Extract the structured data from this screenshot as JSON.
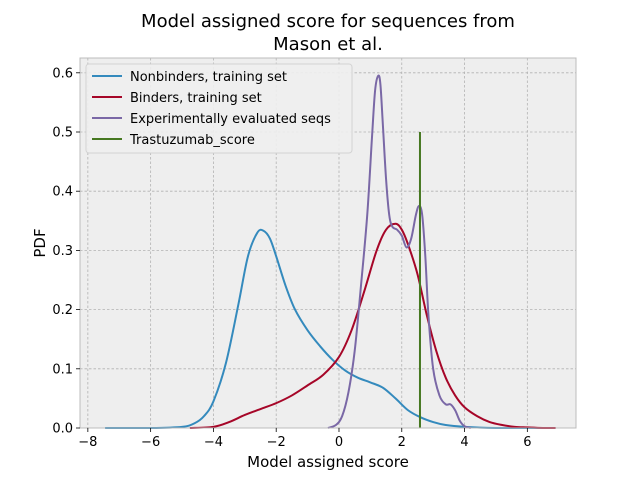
{
  "chart_data": {
    "type": "line",
    "title": [
      "Model assigned score for sequences from",
      "Mason et al."
    ],
    "xlabel": "Model assigned score",
    "ylabel": "PDF",
    "xlim": [
      -8.25,
      7.55
    ],
    "ylim": [
      0,
      0.625
    ],
    "xticks": [
      -8,
      -6,
      -4,
      -2,
      0,
      2,
      4,
      6
    ],
    "xtick_labels": [
      "−8",
      "−6",
      "−4",
      "−2",
      "0",
      "2",
      "4",
      "6"
    ],
    "yticks": [
      0,
      0.1,
      0.2,
      0.3,
      0.4,
      0.5,
      0.6
    ],
    "ytick_labels": [
      "0.0",
      "0.1",
      "0.2",
      "0.3",
      "0.4",
      "0.5",
      "0.6"
    ],
    "grid": true,
    "legend_position": "top-left",
    "series": [
      {
        "name": "Nonbinders, training set",
        "color": "#348ABD",
        "x": [
          -7.45,
          -6.0,
          -5.0,
          -4.6,
          -4.3,
          -4.0,
          -3.6,
          -3.2,
          -2.9,
          -2.6,
          -2.4,
          -2.2,
          -2.0,
          -1.7,
          -1.4,
          -1.0,
          -0.6,
          -0.2,
          0.2,
          0.6,
          1.0,
          1.4,
          1.8,
          2.2,
          2.6,
          3.0,
          3.4,
          4.0,
          5.0,
          6.0,
          6.75
        ],
        "y": [
          0.0,
          0.0,
          0.002,
          0.008,
          0.02,
          0.045,
          0.11,
          0.21,
          0.29,
          0.33,
          0.333,
          0.32,
          0.29,
          0.24,
          0.2,
          0.165,
          0.138,
          0.115,
          0.097,
          0.085,
          0.077,
          0.068,
          0.05,
          0.03,
          0.018,
          0.01,
          0.005,
          0.002,
          0.0,
          0.0,
          0.0
        ]
      },
      {
        "name": "Binders, training set",
        "color": "#A60628",
        "x": [
          -4.75,
          -4.0,
          -3.5,
          -3.0,
          -2.5,
          -2.0,
          -1.5,
          -1.0,
          -0.5,
          0.0,
          0.4,
          0.8,
          1.2,
          1.5,
          1.8,
          2.0,
          2.2,
          2.5,
          2.8,
          3.1,
          3.4,
          3.7,
          4.0,
          4.4,
          4.8,
          5.2,
          5.6,
          6.0,
          6.5,
          6.9
        ],
        "y": [
          0.0,
          0.002,
          0.01,
          0.022,
          0.032,
          0.042,
          0.055,
          0.072,
          0.09,
          0.12,
          0.165,
          0.23,
          0.3,
          0.335,
          0.345,
          0.335,
          0.31,
          0.26,
          0.19,
          0.13,
          0.085,
          0.055,
          0.035,
          0.02,
          0.01,
          0.005,
          0.002,
          0.001,
          0.0,
          0.0
        ]
      },
      {
        "name": "Experimentally evaluated seqs",
        "color": "#7A68A6",
        "x": [
          -0.35,
          -0.1,
          0.1,
          0.3,
          0.5,
          0.7,
          0.9,
          1.05,
          1.15,
          1.25,
          1.32,
          1.4,
          1.5,
          1.6,
          1.7,
          1.85,
          2.0,
          2.15,
          2.3,
          2.45,
          2.55,
          2.65,
          2.75,
          2.85,
          3.0,
          3.2,
          3.4,
          3.55,
          3.7,
          3.85,
          4.0,
          4.2
        ],
        "y": [
          0.0,
          0.005,
          0.02,
          0.06,
          0.13,
          0.24,
          0.36,
          0.49,
          0.57,
          0.595,
          0.58,
          0.51,
          0.42,
          0.36,
          0.34,
          0.335,
          0.325,
          0.305,
          0.32,
          0.36,
          0.375,
          0.36,
          0.29,
          0.19,
          0.1,
          0.055,
          0.04,
          0.04,
          0.03,
          0.012,
          0.003,
          0.0
        ]
      },
      {
        "name": "Trastuzumab_score",
        "color": "#467821",
        "x": [
          2.58,
          2.58
        ],
        "y": [
          0.0,
          0.5
        ]
      }
    ]
  }
}
